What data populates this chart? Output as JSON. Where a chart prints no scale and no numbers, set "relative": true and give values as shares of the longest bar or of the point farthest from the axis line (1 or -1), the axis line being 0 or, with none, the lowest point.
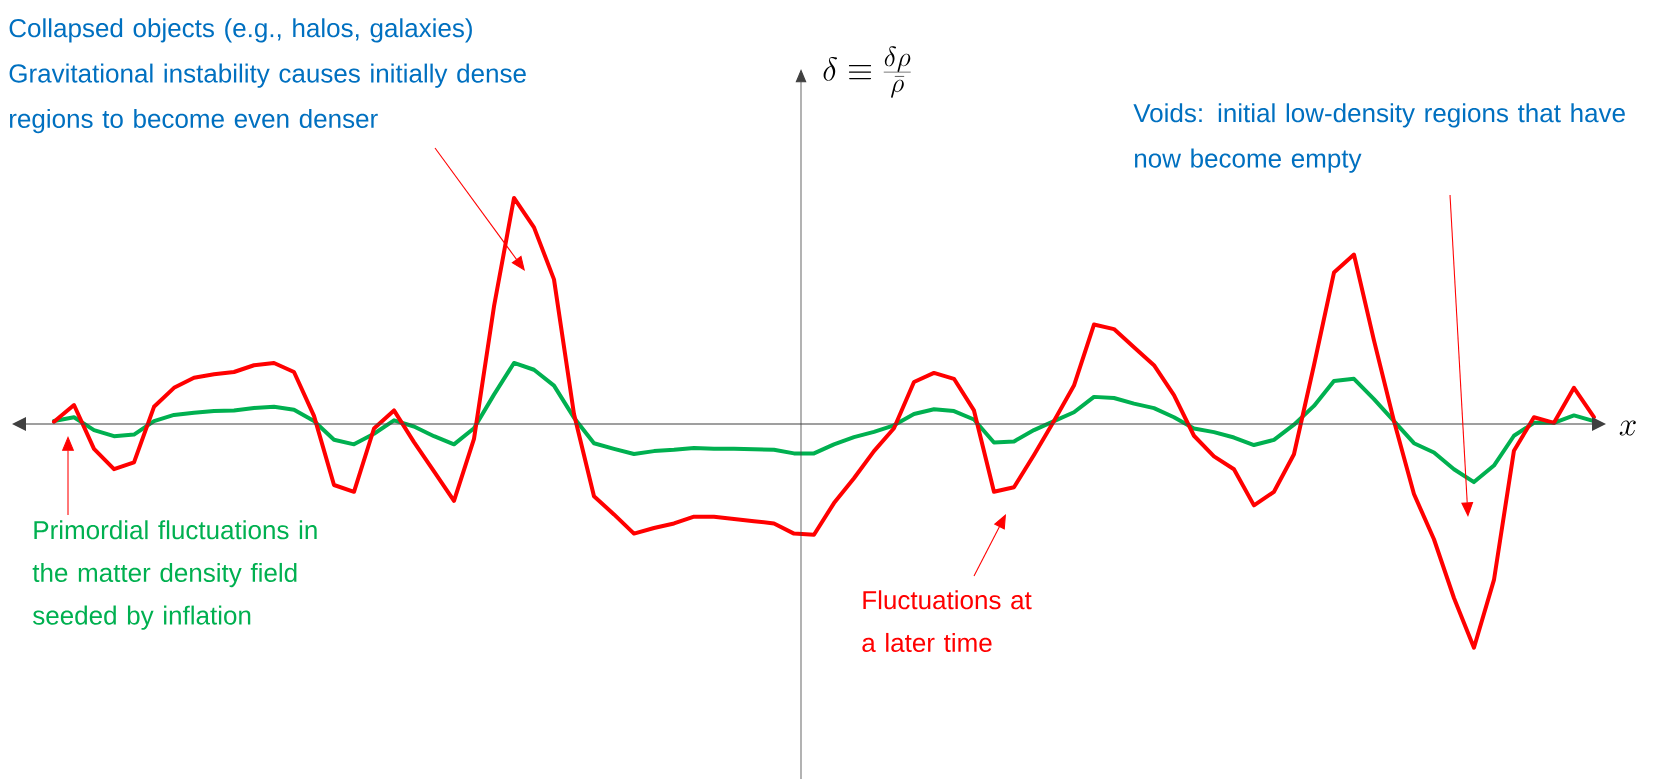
{
  "chart_data": {
    "type": "line",
    "relative": true,
    "xlabel": "x",
    "categories": [
      null,
      null,
      null,
      null,
      null,
      null,
      null,
      null,
      null,
      null,
      null,
      null,
      null,
      null,
      null,
      null,
      null,
      null,
      null,
      null,
      null,
      null,
      null,
      null,
      null,
      null,
      null,
      null,
      null,
      null,
      null,
      null,
      null,
      null,
      null,
      null,
      null,
      null,
      null,
      null,
      null,
      null,
      null,
      null,
      null,
      null,
      null,
      null,
      null,
      null,
      null,
      null,
      null,
      null,
      null,
      null,
      null,
      null,
      null,
      null,
      null,
      null,
      null,
      null,
      null,
      null,
      null,
      null,
      null,
      null,
      null,
      null,
      null,
      null,
      null,
      null,
      null,
      null
    ],
    "series": [
      {
        "name": "Primordial fluctuations in the matter density field seeded by inflation",
        "color": "#00b050",
        "values": [
          0.013,
          0.03,
          -0.027,
          -0.054,
          -0.047,
          0.013,
          0.04,
          0.05,
          0.057,
          0.06,
          0.071,
          0.076,
          0.063,
          0.013,
          -0.07,
          -0.09,
          -0.043,
          0.016,
          -0.011,
          -0.054,
          -0.09,
          -0.019,
          0.13,
          0.27,
          0.24,
          0.17,
          0.028,
          -0.085,
          -0.11,
          -0.133,
          -0.12,
          -0.114,
          -0.106,
          -0.109,
          -0.11,
          -0.112,
          -0.114,
          -0.13,
          -0.13,
          -0.09,
          -0.058,
          -0.035,
          -0.006,
          0.044,
          0.065,
          0.057,
          0.02,
          -0.082,
          -0.077,
          -0.027,
          0.013,
          0.052,
          0.12,
          0.115,
          0.09,
          0.07,
          0.03,
          -0.02,
          -0.036,
          -0.06,
          -0.093,
          -0.07,
          -0.003,
          0.08,
          0.19,
          0.2,
          0.11,
          0.013,
          -0.085,
          -0.126,
          -0.2,
          -0.257,
          -0.184,
          -0.052,
          0.005,
          0.005,
          0.038,
          0.013
        ]
      },
      {
        "name": "Fluctuations at a later time",
        "color": "#ff0000",
        "values": [
          0.01,
          0.084,
          -0.11,
          -0.2,
          -0.17,
          0.076,
          0.16,
          0.205,
          0.22,
          0.23,
          0.26,
          0.27,
          0.23,
          0.036,
          -0.27,
          -0.3,
          -0.02,
          0.06,
          -0.08,
          -0.21,
          -0.34,
          -0.066,
          0.52,
          1.0,
          0.87,
          0.64,
          0.044,
          -0.32,
          -0.4,
          -0.485,
          -0.46,
          -0.44,
          -0.41,
          -0.41,
          -0.42,
          -0.43,
          -0.44,
          -0.485,
          -0.49,
          -0.35,
          -0.24,
          -0.12,
          -0.019,
          0.186,
          0.226,
          0.2,
          0.06,
          -0.3,
          -0.28,
          -0.137,
          0.013,
          0.17,
          0.44,
          0.42,
          0.34,
          0.26,
          0.128,
          -0.052,
          -0.143,
          -0.2,
          -0.36,
          -0.3,
          -0.134,
          0.26,
          0.67,
          0.75,
          0.37,
          0.013,
          -0.31,
          -0.51,
          -0.77,
          -0.99,
          -0.69,
          -0.118,
          0.03,
          0.005,
          0.16,
          0.03
        ]
      }
    ],
    "annotations": [
      "Collapsed objects (e.g., halos, galaxies) Gravitational instability causes initially dense regions to become even denser",
      "Voids: initial low-density regions that have now become empty",
      "\\delta \\equiv \\frac{\\delta\\rho}{\\bar{\\rho}}"
    ]
  }
}
